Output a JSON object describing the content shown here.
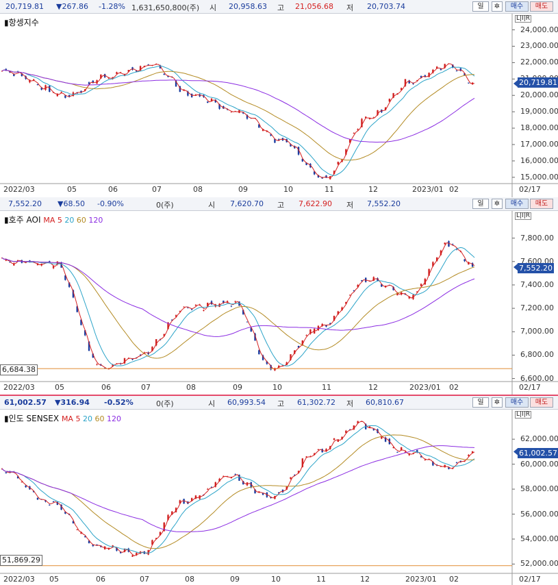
{
  "colors": {
    "up": "#d02020",
    "down": "#1a3ca0",
    "ma5": "#d42020",
    "ma20": "#2aa3c8",
    "ma60": "#b38a22",
    "ma120": "#8a2be2",
    "lowline": "#e08a30",
    "curbox": "#2451a8"
  },
  "buttons": {
    "period": "일",
    "settings_icon": "gear-icon",
    "sell": "매수",
    "buy": "매도"
  },
  "panels": [
    {
      "header": {
        "price": "20,719.81",
        "change": "▼267.86",
        "pct": "-1.28%",
        "volume": "1,631,650,800(주)",
        "open_label": "시",
        "open": "20,958.63",
        "high_label": "고",
        "high": "21,056.68",
        "low_label": "저",
        "low": "20,703.74"
      },
      "title": "항셍지수",
      "ma_labels": [],
      "current": "20,719.81",
      "lowmark": "",
      "yticks": [
        "24,000.00",
        "23,000.00",
        "22,000.00",
        "21,000.00",
        "20,000.00",
        "19,000.00",
        "18,000.00",
        "17,000.00",
        "16,000.00",
        "15,000.00"
      ],
      "xticks": [
        "2022/03",
        "05",
        "06",
        "07",
        "08",
        "09",
        "10",
        "11",
        "12",
        "2023/01",
        "02",
        "02/17"
      ],
      "chart_data": {
        "type": "line",
        "title": "항셍지수",
        "ylim": [
          14700,
          24400
        ],
        "x": [
          "2022/03",
          "05",
          "06",
          "07",
          "08",
          "09",
          "10",
          "11",
          "12",
          "2023/01",
          "02",
          "02/17"
        ],
        "series": [
          {
            "name": "close",
            "values": [
              21500,
              20000,
              21200,
              21800,
              20000,
              19000,
              17200,
              14900,
              18600,
              20900,
              21900,
              20719.81
            ]
          }
        ]
      }
    },
    {
      "header": {
        "price": "7,552.20",
        "change": "▼68.50",
        "pct": "-0.90%",
        "volume": "0(주)",
        "open_label": "시",
        "open": "7,620.70",
        "high_label": "고",
        "high": "7,622.90",
        "low_label": "저",
        "low": "7,552.20"
      },
      "title": "호주 AOI",
      "ma_labels": [
        "MA",
        "5",
        "20",
        "60",
        "120"
      ],
      "current": "7,552.20",
      "lowmark": "6,684.38",
      "yticks": [
        "7,800.00",
        "7,600.00",
        "7,400.00",
        "7,200.00",
        "7,000.00",
        "6,800.00",
        "6,600.00"
      ],
      "xticks": [
        "2022/03",
        "05",
        "06",
        "07",
        "08",
        "09",
        "10",
        "11",
        "12",
        "2023/01",
        "02",
        "02/17"
      ],
      "chart_data": {
        "type": "line",
        "title": "호주 AOI",
        "ylim": [
          6580,
          7950
        ],
        "x": [
          "2022/03",
          "05",
          "06",
          "07",
          "08",
          "09",
          "10",
          "11",
          "12",
          "2023/01",
          "02",
          "02/17"
        ],
        "series": [
          {
            "name": "close",
            "values": [
              7600,
              7580,
              6700,
              6800,
              7200,
              7250,
              6684.38,
              7050,
              7450,
              7300,
              7750,
              7552.2
            ]
          }
        ]
      }
    },
    {
      "header": {
        "price": "61,002.57",
        "change": "▼316.94",
        "pct": "-0.52%",
        "volume": "0(주)",
        "open_label": "시",
        "open": "60,993.54",
        "high_label": "고",
        "high": "61,302.72",
        "low_label": "저",
        "low": "60,810.67"
      },
      "title": "인도 SENSEX",
      "ma_labels": [
        "MA",
        "5",
        "20",
        "60",
        "120"
      ],
      "current": "61,002.57",
      "lowmark": "51,869.29",
      "yticks": [
        "62,000.00",
        "60,000.00",
        "58,000.00",
        "56,000.00",
        "54,000.00",
        "52,000.00"
      ],
      "xticks": [
        "2022/03",
        "05",
        "06",
        "07",
        "08",
        "09",
        "10",
        "11",
        "12",
        "2023/01",
        "02",
        "02/17"
      ],
      "chart_data": {
        "type": "line",
        "title": "인도 SENSEX",
        "ylim": [
          51200,
          63600
        ],
        "x": [
          "2022/03",
          "05",
          "06",
          "07",
          "08",
          "09",
          "10",
          "11",
          "12",
          "2023/01",
          "02",
          "02/17"
        ],
        "series": [
          {
            "name": "close",
            "values": [
              59500,
              57000,
              53500,
              52800,
              57000,
              59000,
              57400,
              61000,
              63200,
              61000,
              59700,
              61002.57
            ]
          }
        ]
      }
    }
  ]
}
